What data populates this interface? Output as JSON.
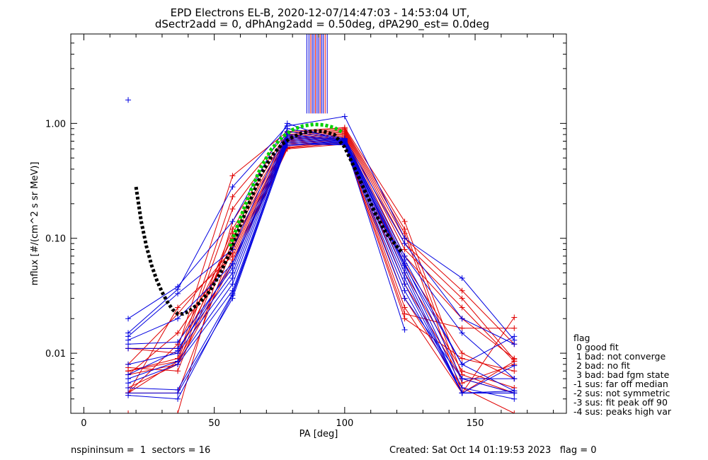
{
  "chart_data": {
    "type": "line",
    "title": "EPD Electrons EL-B, 2020-12-07/14:47:03 - 14:53:04 UT,",
    "subtitle": "dSectr2add = 0, dPhAng2add = 0.50deg, dPA290_est=    0.0deg",
    "xlabel": "PA [deg]",
    "ylabel": "mflux [#/(cm^2 s sr MeV)]",
    "xlim": [
      -5,
      185
    ],
    "ylim": [
      0.003,
      6.0
    ],
    "yscale": "log",
    "x_ticks": [
      0,
      50,
      100,
      150
    ],
    "x_tick_labels": [
      "0",
      "50",
      "100",
      "150"
    ],
    "y_ticks": [
      0.01,
      0.1,
      1.0
    ],
    "y_tick_labels": [
      "0.01",
      "0.10",
      "1.00"
    ],
    "grid": false,
    "colors": {
      "red": "#e00000",
      "blue": "#0000e0",
      "black": "#000000",
      "green": "#00d000"
    },
    "x_positions": [
      17,
      36,
      57,
      78,
      100,
      123,
      145,
      165
    ],
    "series_red": [
      [
        0.011,
        0.011,
        0.35,
        0.85,
        0.92,
        0.14,
        0.0065,
        0.0045
      ],
      [
        0.007,
        0.009,
        0.23,
        0.83,
        0.9,
        0.12,
        0.0055,
        0.008
      ],
      [
        0.0045,
        0.0085,
        0.18,
        0.8,
        0.88,
        0.11,
        0.0045,
        0.0205
      ],
      [
        0.003,
        0.003,
        0.14,
        0.78,
        0.86,
        0.1,
        0.035,
        0.012
      ],
      [
        0.0065,
        0.008,
        0.12,
        0.76,
        0.84,
        0.09,
        0.03,
        0.0088
      ],
      [
        0.0075,
        0.007,
        0.11,
        0.74,
        0.82,
        0.08,
        0.025,
        0.0085
      ],
      [
        0.0045,
        0.012,
        0.1,
        0.72,
        0.8,
        0.07,
        0.02,
        0.009
      ],
      [
        0.011,
        0.01,
        0.09,
        0.7,
        0.78,
        0.06,
        0.01,
        0.006
      ],
      [
        0.0045,
        0.0045,
        0.085,
        0.68,
        0.76,
        0.05,
        0.007,
        0.005
      ],
      [
        0.008,
        0.022,
        0.08,
        0.66,
        0.74,
        0.04,
        0.006,
        0.0045
      ],
      [
        0.0065,
        0.015,
        0.075,
        0.64,
        0.72,
        0.03,
        0.005,
        0.003
      ],
      [
        0.0045,
        0.025,
        0.07,
        0.62,
        0.7,
        0.025,
        0.0045,
        0.0085
      ],
      [
        0.007,
        0.0085,
        0.065,
        0.61,
        0.68,
        0.022,
        0.0165,
        0.0165
      ],
      [
        0.005,
        0.008,
        0.06,
        0.6,
        0.66,
        0.02,
        0.009,
        0.007
      ]
    ],
    "series_blue": [
      [
        1.6
      ],
      [
        0.02,
        0.038,
        0.14,
        1.0,
        0.68,
        0.016
      ],
      [
        0.015,
        0.036,
        0.28,
        0.95,
        1.15,
        0.1,
        0.045,
        0.013
      ],
      [
        0.014,
        0.033,
        0.08,
        0.9,
        0.74,
        0.09,
        0.02,
        0.012
      ],
      [
        0.013,
        0.02,
        0.06,
        0.85,
        0.73,
        0.07,
        0.015,
        0.006
      ],
      [
        0.012,
        0.0125,
        0.055,
        0.8,
        0.72,
        0.065,
        0.008,
        0.0047
      ],
      [
        0.011,
        0.011,
        0.05,
        0.78,
        0.71,
        0.06,
        0.006,
        0.0045
      ],
      [
        0.008,
        0.01,
        0.045,
        0.76,
        0.7,
        0.055,
        0.005,
        0.004
      ],
      [
        0.006,
        0.0085,
        0.04,
        0.74,
        0.69,
        0.05,
        0.0045,
        0.0045
      ],
      [
        0.0055,
        0.008,
        0.035,
        0.72,
        0.68,
        0.045,
        0.0045,
        0.0078
      ],
      [
        0.005,
        0.0048,
        0.033,
        0.7,
        0.67,
        0.04,
        0.0045,
        0.0045
      ],
      [
        0.0045,
        0.0045,
        0.03,
        0.68,
        0.66,
        0.035,
        0.0045,
        0.0047
      ],
      [
        0.0043,
        0.004,
        0.032,
        0.66,
        0.65,
        0.03,
        0.006,
        0.006
      ],
      [
        0.0065,
        0.0105,
        0.06,
        0.64,
        0.69,
        0.058,
        0.008,
        0.014
      ]
    ],
    "vertical_lines_x": [
      85.5,
      86.3,
      87,
      87.6,
      88.2,
      88.8,
      89.4,
      90,
      90.6,
      91.2,
      91.8,
      92.5,
      93.3
    ],
    "vertical_lines_top": 6.0,
    "vertical_lines_bottom": 1.22,
    "fit_curves": {
      "black": [
        [
          20,
          0.28
        ],
        [
          22,
          0.14
        ],
        [
          24,
          0.085
        ],
        [
          26,
          0.058
        ],
        [
          28,
          0.043
        ],
        [
          30,
          0.034
        ],
        [
          32,
          0.028
        ],
        [
          34,
          0.024
        ],
        [
          36,
          0.022
        ],
        [
          38,
          0.022
        ],
        [
          40,
          0.023
        ],
        [
          44,
          0.027
        ],
        [
          48,
          0.034
        ],
        [
          52,
          0.048
        ],
        [
          56,
          0.075
        ],
        [
          60,
          0.13
        ],
        [
          64,
          0.22
        ],
        [
          68,
          0.36
        ],
        [
          72,
          0.52
        ],
        [
          76,
          0.66
        ],
        [
          80,
          0.76
        ],
        [
          84,
          0.83
        ],
        [
          88,
          0.86
        ],
        [
          92,
          0.85
        ],
        [
          96,
          0.8
        ],
        [
          100,
          0.62
        ],
        [
          104,
          0.4
        ],
        [
          108,
          0.25
        ],
        [
          112,
          0.16
        ],
        [
          116,
          0.11
        ],
        [
          120,
          0.085
        ],
        [
          122,
          0.075
        ]
      ],
      "green": [
        [
          56,
          0.085
        ],
        [
          60,
          0.15
        ],
        [
          64,
          0.26
        ],
        [
          68,
          0.42
        ],
        [
          72,
          0.6
        ],
        [
          76,
          0.76
        ],
        [
          80,
          0.88
        ],
        [
          84,
          0.95
        ],
        [
          88,
          0.98
        ],
        [
          92,
          0.97
        ],
        [
          96,
          0.92
        ],
        [
          99,
          0.84
        ]
      ]
    }
  },
  "legend": {
    "title": "flag",
    "entries": [
      " 0 good fit",
      " 1 bad: not converge",
      " 2 bad: no fit",
      " 3 bad: bad fgm state",
      "-1 sus: far off median",
      "-2 sus: not symmetric",
      "-3 sus: fit peak off 90",
      "-4 sus: peaks high var"
    ]
  },
  "footer": {
    "left": "nspininsum =  1  sectors = 16",
    "right": "Created: Sat Oct 14 01:19:53 2023   flag = 0"
  }
}
